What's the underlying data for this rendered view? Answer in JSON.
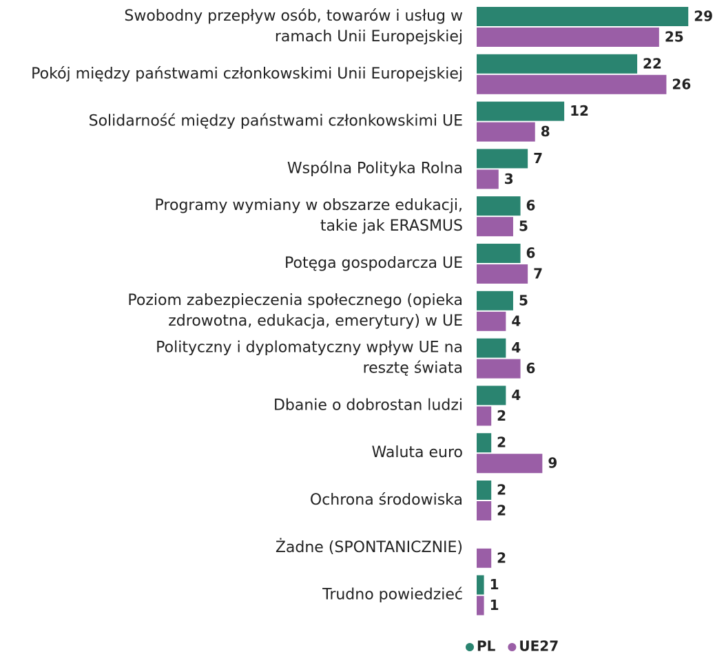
{
  "chart_data": {
    "type": "bar",
    "orientation": "horizontal",
    "categories": [
      [
        "Swobodny przepływ osób, towarów i usług w",
        "ramach Unii Europejskiej"
      ],
      [
        "Pokój między państwami członkowskimi Unii Europejskiej"
      ],
      [
        "Solidarność między państwami członkowskimi UE"
      ],
      [
        "Wspólna Polityka Rolna"
      ],
      [
        "Programy wymiany w obszarze edukacji,",
        "takie jak ERASMUS"
      ],
      [
        "Potęga gospodarcza UE"
      ],
      [
        "Poziom zabezpieczenia społecznego (opieka",
        "zdrowotna, edukacja, emerytury) w UE"
      ],
      [
        "Polityczny i dyplomatyczny wpływ UE na",
        "resztę świata"
      ],
      [
        "Dbanie o dobrostan ludzi"
      ],
      [
        "Waluta euro"
      ],
      [
        "Ochrona środowiska"
      ],
      [
        "Żadne (SPONTANICZNIE)"
      ],
      [
        "Trudno powiedzieć"
      ]
    ],
    "series": [
      {
        "name": "PL",
        "color": "#2a8470",
        "values": [
          29,
          22,
          12,
          7,
          6,
          6,
          5,
          4,
          4,
          2,
          2,
          null,
          1
        ]
      },
      {
        "name": "UE27",
        "color": "#9a5ea6",
        "values": [
          25,
          26,
          8,
          3,
          5,
          7,
          4,
          6,
          2,
          9,
          2,
          2,
          1
        ]
      }
    ],
    "xlim": [
      0,
      30
    ]
  }
}
